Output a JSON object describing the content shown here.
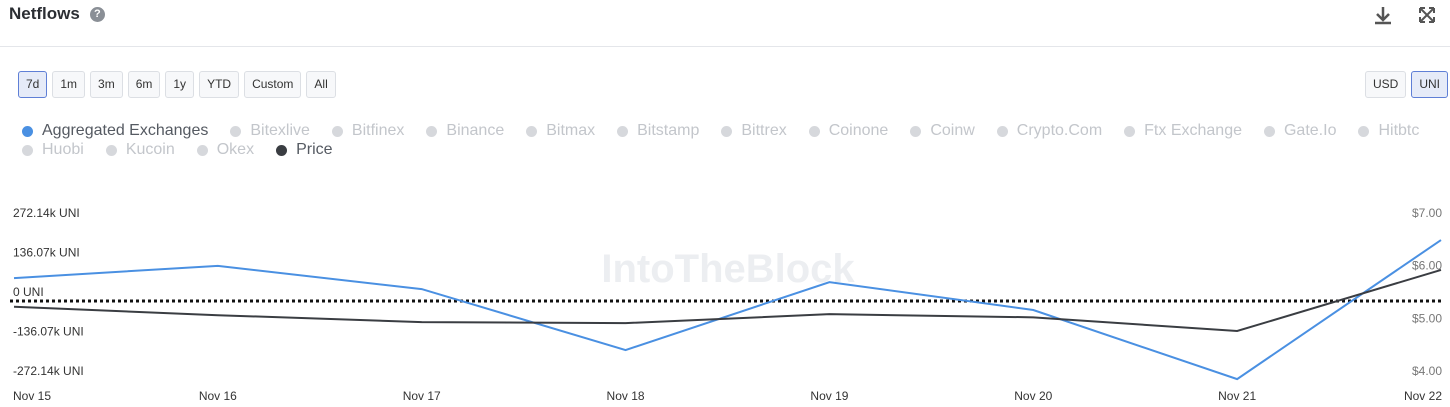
{
  "header": {
    "title": "Netflows"
  },
  "range_buttons": [
    "7d",
    "1m",
    "3m",
    "6m",
    "1y",
    "YTD",
    "Custom",
    "All"
  ],
  "active_range": "7d",
  "unit_buttons": [
    "USD",
    "UNI"
  ],
  "active_unit": "UNI",
  "inactive_legend": [
    "Bitexlive",
    "Bitfinex",
    "Binance",
    "Bitmax",
    "Bitstamp",
    "Bittrex",
    "Coinone",
    "Coinw",
    "Crypto.Com",
    "Ftx Exchange",
    "Gate.Io",
    "Hitbtc",
    "Huobi",
    "Kucoin",
    "Okex"
  ],
  "chart_data": {
    "type": "line",
    "watermark": "IntoTheBlock",
    "categories": [
      "Nov 15",
      "Nov 16",
      "Nov 17",
      "Nov 18",
      "Nov 19",
      "Nov 20",
      "Nov 21",
      "Nov 22"
    ],
    "series": [
      {
        "name": "Aggregated Exchanges",
        "color": "#4a90e2",
        "values": [
          79000,
          121000,
          41000,
          -169000,
          65000,
          -31000,
          -269000,
          210000
        ]
      },
      {
        "name": "Price",
        "color": "#3a3d42",
        "axis": "y2",
        "values": [
          5.39,
          5.23,
          5.1,
          5.08,
          5.25,
          5.19,
          4.93,
          6.09
        ]
      }
    ],
    "ylim": [
      -272140,
      272140
    ],
    "yticks": [
      {
        "value": 272140,
        "label": "272.14k UNI"
      },
      {
        "value": 136070,
        "label": "136.07k UNI"
      },
      {
        "value": 0,
        "label": "0 UNI"
      },
      {
        "value": -136070,
        "label": "-136.07k UNI"
      },
      {
        "value": -272140,
        "label": "-272.14k UNI"
      }
    ],
    "y2lim": [
      4,
      7
    ],
    "y2ticks": [
      {
        "value": 7,
        "label": "$7.00"
      },
      {
        "value": 6,
        "label": "$6.00"
      },
      {
        "value": 5,
        "label": "$5.00"
      },
      {
        "value": 4,
        "label": "$4.00"
      }
    ],
    "grid": false
  }
}
